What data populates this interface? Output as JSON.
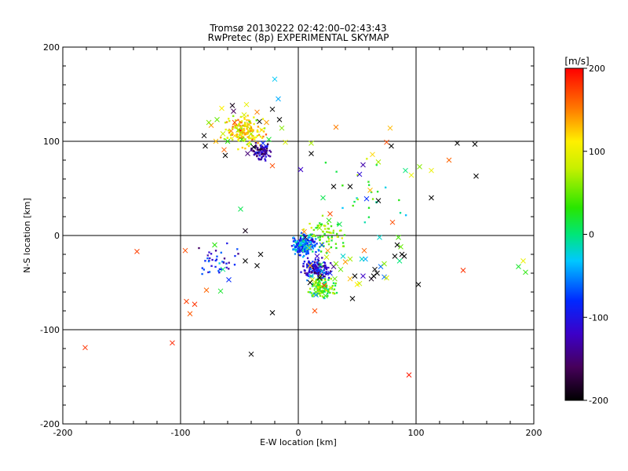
{
  "header": {
    "title_line1": "Tromsø 20130222 02:42:00–02:43:43",
    "title_line2": "RwPretec (8p) EXPERIMENTAL SKYMAP"
  },
  "colorbar": {
    "unit_label": "[m/s]",
    "ticks": [
      "200",
      "100",
      "0",
      "-100",
      "-200"
    ],
    "range": [
      -200,
      200
    ]
  },
  "chart_data": {
    "type": "scatter",
    "title": "Tromsø 20130222 02:42:00–02:43:43",
    "subtitle": "RwPretec (8p) EXPERIMENTAL SKYMAP",
    "xlabel": "E-W location [km]",
    "ylabel": "N-S location [km]",
    "xlim": [
      -200,
      200
    ],
    "ylim": [
      -200,
      200
    ],
    "x_ticks": [
      "-200",
      "-100",
      "0",
      "100",
      "200"
    ],
    "y_ticks": [
      "-200",
      "-100",
      "0",
      "100",
      "200"
    ],
    "grid": "major lines at x,y = -100, 0, 100",
    "color_scale": "velocity [m/s], rainbow from -200 (black) to 200 (red)",
    "markers": {
      "large_x": [
        [
          -181,
          -119,
          180
        ],
        [
          -137,
          -17,
          175
        ],
        [
          -107,
          -114,
          185
        ],
        [
          -96,
          -16,
          170
        ],
        [
          -95,
          -70,
          175
        ],
        [
          -92,
          -83,
          165
        ],
        [
          -88,
          -73,
          180
        ],
        [
          -78,
          -58,
          160
        ],
        [
          -71,
          -10,
          30
        ],
        [
          -66,
          -59,
          20
        ],
        [
          -64,
          -36,
          0
        ],
        [
          -59,
          -47,
          -80
        ],
        [
          -49,
          28,
          10
        ],
        [
          -45,
          5,
          -190
        ],
        [
          -45,
          -27,
          -200
        ],
        [
          -40,
          -126,
          -200
        ],
        [
          -35,
          -32,
          -200
        ],
        [
          -32,
          -20,
          -200
        ],
        [
          -22,
          -82,
          -200
        ],
        [
          -80,
          106,
          -200
        ],
        [
          -79,
          95,
          -200
        ],
        [
          -74,
          117,
          140
        ],
        [
          -69,
          123,
          50
        ],
        [
          -65,
          135,
          110
        ],
        [
          -64,
          108,
          80
        ],
        [
          -63,
          91,
          160
        ],
        [
          -60,
          100,
          30
        ],
        [
          -57,
          111,
          150
        ],
        [
          -56,
          138,
          -190
        ],
        [
          -55,
          132,
          -160
        ],
        [
          -54,
          106,
          120
        ],
        [
          -51,
          112,
          60
        ],
        [
          -48,
          102,
          40
        ],
        [
          -46,
          128,
          90
        ],
        [
          -44,
          139,
          100
        ],
        [
          -42,
          118,
          130
        ],
        [
          -40,
          108,
          70
        ],
        [
          -38,
          94,
          -200
        ],
        [
          -35,
          131,
          150
        ],
        [
          -33,
          121,
          -200
        ],
        [
          -31,
          112,
          110
        ],
        [
          -30,
          98,
          -80
        ],
        [
          -28,
          88,
          -150
        ],
        [
          -27,
          120,
          140
        ],
        [
          -25,
          102,
          20
        ],
        [
          -22,
          134,
          -200
        ],
        [
          -22,
          74,
          170
        ],
        [
          -20,
          166,
          -30
        ],
        [
          -17,
          145,
          -40
        ],
        [
          -16,
          123,
          -200
        ],
        [
          -14,
          114,
          60
        ],
        [
          -11,
          99,
          90
        ],
        [
          -62,
          85,
          -200
        ],
        [
          -76,
          120,
          60
        ],
        [
          -70,
          100,
          130
        ],
        [
          -54,
          120,
          170
        ],
        [
          -43,
          87,
          -150
        ],
        [
          2,
          70,
          -120
        ],
        [
          6,
          -2,
          -170
        ],
        [
          9,
          -13,
          90
        ],
        [
          10,
          -32,
          130
        ],
        [
          11,
          -43,
          -20
        ],
        [
          12,
          -47,
          100
        ],
        [
          14,
          -52,
          70
        ],
        [
          14,
          -80,
          170
        ],
        [
          15,
          -60,
          40
        ],
        [
          15,
          -63,
          -50
        ],
        [
          16,
          -22,
          -120
        ],
        [
          18,
          8,
          60
        ],
        [
          19,
          -31,
          10
        ],
        [
          20,
          -38,
          -30
        ],
        [
          22,
          -53,
          180
        ],
        [
          23,
          -64,
          30
        ],
        [
          24,
          -23,
          80
        ],
        [
          25,
          -16,
          140
        ],
        [
          27,
          -40,
          -90
        ],
        [
          28,
          -56,
          100
        ],
        [
          30,
          -33,
          -140
        ],
        [
          31,
          -46,
          50
        ],
        [
          32,
          -30,
          60
        ],
        [
          35,
          12,
          10
        ],
        [
          36,
          -36,
          50
        ],
        [
          38,
          -22,
          -20
        ],
        [
          40,
          -28,
          140
        ],
        [
          44,
          -46,
          130
        ],
        [
          44,
          -25,
          70
        ],
        [
          46,
          -67,
          -200
        ],
        [
          52,
          -51,
          80
        ],
        [
          55,
          -43,
          -120
        ],
        [
          56,
          -16,
          160
        ],
        [
          57,
          -25,
          -40
        ],
        [
          62,
          -46,
          -190
        ],
        [
          64,
          -43,
          -200
        ],
        [
          67,
          -40,
          -200
        ],
        [
          69,
          -2,
          -20
        ],
        [
          70,
          -33,
          -60
        ],
        [
          73,
          -44,
          -60
        ],
        [
          5,
          4,
          150
        ],
        [
          8,
          -13,
          -30
        ],
        [
          2,
          -16,
          -100
        ],
        [
          18,
          -45,
          -200
        ],
        [
          10,
          -50,
          -200
        ],
        [
          20,
          -10,
          -70
        ],
        [
          11,
          87,
          -200
        ],
        [
          11,
          98,
          70
        ],
        [
          21,
          40,
          10
        ],
        [
          26,
          16,
          30
        ],
        [
          27,
          23,
          170
        ],
        [
          30,
          52,
          -200
        ],
        [
          32,
          115,
          150
        ],
        [
          44,
          52,
          -200
        ],
        [
          48,
          -43,
          -200
        ],
        [
          50,
          -52,
          110
        ],
        [
          52,
          65,
          -110
        ],
        [
          54,
          -25,
          -20
        ],
        [
          55,
          75,
          -130
        ],
        [
          58,
          39,
          -80
        ],
        [
          61,
          48,
          130
        ],
        [
          63,
          86,
          120
        ],
        [
          65,
          -36,
          -200
        ],
        [
          68,
          37,
          -200
        ],
        [
          68,
          78,
          70
        ],
        [
          73,
          -30,
          60
        ],
        [
          75,
          99,
          170
        ],
        [
          75,
          -45,
          90
        ],
        [
          78,
          114,
          130
        ],
        [
          79,
          95,
          -200
        ],
        [
          80,
          14,
          170
        ],
        [
          84,
          -10,
          -200
        ],
        [
          85,
          -2,
          40
        ],
        [
          87,
          -12,
          50
        ],
        [
          88,
          -20,
          -200
        ],
        [
          90,
          -22,
          -200
        ],
        [
          91,
          69,
          0
        ],
        [
          94,
          -148,
          190
        ],
        [
          102,
          -52,
          -200
        ],
        [
          103,
          73,
          60
        ],
        [
          113,
          69,
          100
        ],
        [
          113,
          40,
          -200
        ],
        [
          128,
          80,
          160
        ],
        [
          135,
          98,
          -200
        ],
        [
          140,
          -37,
          180
        ],
        [
          150,
          97,
          -200
        ],
        [
          151,
          63,
          -200
        ],
        [
          187,
          -33,
          20
        ],
        [
          191,
          -27,
          100
        ],
        [
          193,
          -39,
          30
        ],
        [
          82,
          -22,
          -200
        ],
        [
          96,
          64,
          100
        ],
        [
          86,
          -27,
          0
        ]
      ],
      "small_dot_clusters": [
        {
          "center": [
            -45,
            110
          ],
          "spread_km": 22,
          "count": 170,
          "velocity_mean": 110
        },
        {
          "center": [
            -30,
            88
          ],
          "spread_km": 12,
          "count": 90,
          "velocity_mean": -130
        },
        {
          "center": [
            5,
            -10
          ],
          "spread_km": 15,
          "count": 200,
          "velocity_mean": -60
        },
        {
          "center": [
            15,
            -35
          ],
          "spread_km": 15,
          "count": 160,
          "velocity_mean": -110
        },
        {
          "center": [
            20,
            -55
          ],
          "spread_km": 15,
          "count": 130,
          "velocity_mean": 40
        },
        {
          "center": [
            25,
            0
          ],
          "spread_km": 25,
          "count": 70,
          "velocity_mean": 60
        },
        {
          "center": [
            -70,
            -30
          ],
          "spread_km": 25,
          "count": 40,
          "velocity_mean": -100
        },
        {
          "center": [
            60,
            40
          ],
          "spread_km": 50,
          "count": 25,
          "velocity_mean": 30
        }
      ]
    }
  }
}
